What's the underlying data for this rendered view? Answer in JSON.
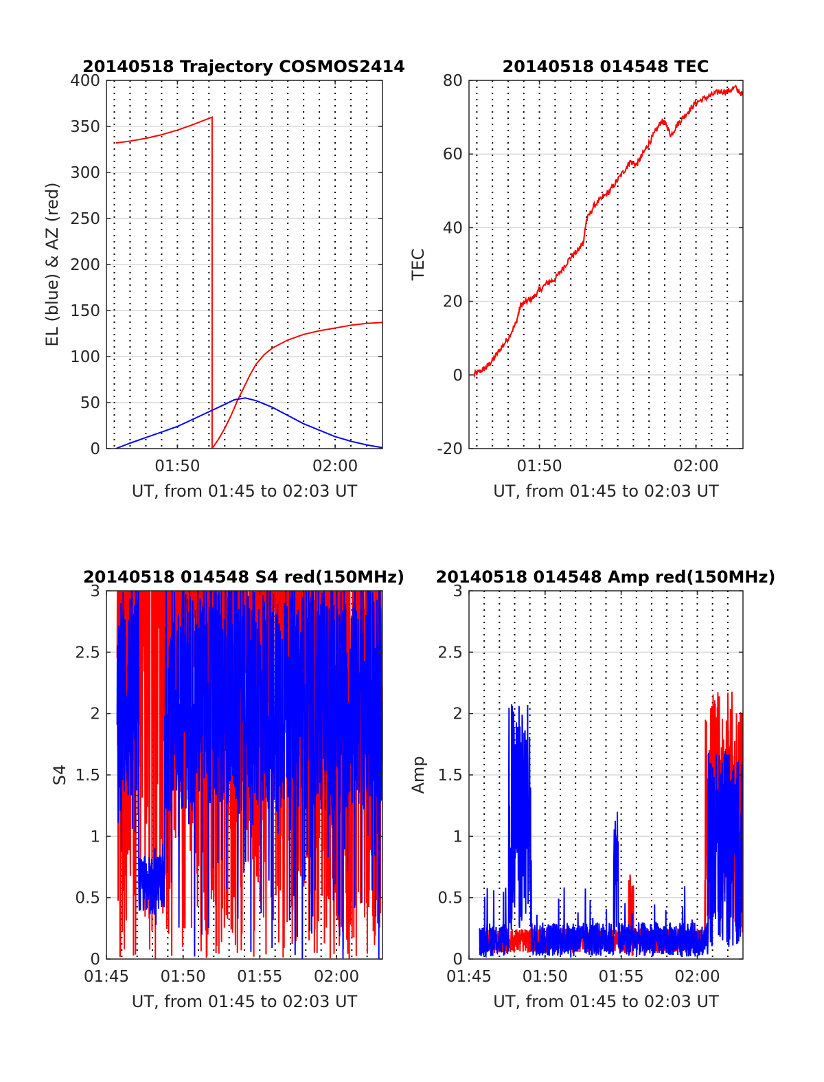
{
  "figure": {
    "background": "#ffffff"
  },
  "colors": {
    "red": "#ff0000",
    "blue": "#0000ff",
    "grid": "#d9d9d9",
    "vgrid": "#000000",
    "axis": "#262626"
  },
  "chart_data": [
    {
      "type": "line",
      "title": "20140518 Trajectory COSMOS2414",
      "xlabel": "UT, from 01:45 to 02:03 UT",
      "ylabel": "EL (blue) & AZ (red)",
      "x_unit": "minutes after 01:45 UT",
      "xlim": [
        0.5,
        18.0
      ],
      "ylim": [
        0,
        400
      ],
      "yticks": [
        0,
        50,
        100,
        150,
        200,
        250,
        300,
        350,
        400
      ],
      "xticks": [
        5,
        15
      ],
      "xticklabels": [
        "01:50",
        "02:00"
      ],
      "grid_y": true,
      "grid_x_dotted_minutes": [
        1,
        2,
        3,
        4,
        5,
        6,
        7,
        8,
        9,
        10,
        11,
        12,
        13,
        14,
        15,
        16,
        17
      ],
      "series": [
        {
          "color": "#ff0000",
          "points": [
            [
              1.1,
              332
            ],
            [
              2,
              334
            ],
            [
              3,
              337
            ],
            [
              4,
              341
            ],
            [
              5,
              346
            ],
            [
              6,
              352
            ],
            [
              7.2,
              360
            ],
            [
              7.2,
              0
            ],
            [
              7.6,
              10
            ],
            [
              8,
              22
            ],
            [
              8.4,
              36
            ],
            [
              8.8,
              52
            ],
            [
              9.2,
              66
            ],
            [
              9.6,
              80
            ],
            [
              10,
              92
            ],
            [
              10.5,
              102
            ],
            [
              11,
              109
            ],
            [
              12,
              118
            ],
            [
              13,
              124
            ],
            [
              14,
              128
            ],
            [
              15,
              131
            ],
            [
              16,
              134
            ],
            [
              17,
              136
            ],
            [
              18,
              137
            ]
          ]
        },
        {
          "color": "#0000ff",
          "points": [
            [
              1.1,
              0
            ],
            [
              2,
              6
            ],
            [
              3,
              12
            ],
            [
              4,
              18
            ],
            [
              5,
              24
            ],
            [
              6,
              32
            ],
            [
              7,
              40
            ],
            [
              8,
              48
            ],
            [
              8.6,
              53
            ],
            [
              9.3,
              55
            ],
            [
              10,
              52
            ],
            [
              11,
              45
            ],
            [
              12,
              36
            ],
            [
              13,
              27
            ],
            [
              14,
              20
            ],
            [
              15,
              13
            ],
            [
              16,
              8
            ],
            [
              17,
              4
            ],
            [
              18,
              1
            ]
          ]
        }
      ]
    },
    {
      "type": "line",
      "title": "20140518 014548 TEC",
      "xlabel": "UT, from 01:45 to 02:03 UT",
      "ylabel": "TEC",
      "x_unit": "minutes after 01:45 UT",
      "xlim": [
        0.5,
        18.0
      ],
      "ylim": [
        -20,
        80
      ],
      "yticks": [
        -20,
        0,
        20,
        40,
        60,
        80
      ],
      "xticks": [
        5,
        15
      ],
      "xticklabels": [
        "01:50",
        "02:00"
      ],
      "grid_y": true,
      "grid_x_dotted_minutes": [
        1,
        2,
        3,
        4,
        5,
        6,
        7,
        8,
        9,
        10,
        11,
        12,
        13,
        14,
        15,
        16,
        17
      ],
      "series": [
        {
          "color": "#ff0000",
          "points": [
            [
              0.8,
              0
            ],
            [
              1.2,
              1
            ],
            [
              1.6,
              2
            ],
            [
              2,
              4
            ],
            [
              2.5,
              7
            ],
            [
              3,
              10
            ],
            [
              3.5,
              14
            ],
            [
              3.8,
              19
            ],
            [
              4.2,
              20
            ],
            [
              4.6,
              21
            ],
            [
              5,
              23
            ],
            [
              5.5,
              25
            ],
            [
              6,
              26
            ],
            [
              6.5,
              29
            ],
            [
              7,
              32
            ],
            [
              7.5,
              34
            ],
            [
              7.8,
              36
            ],
            [
              8,
              42
            ],
            [
              8.5,
              46
            ],
            [
              9,
              48
            ],
            [
              9.5,
              50
            ],
            [
              10,
              53
            ],
            [
              10.5,
              56
            ],
            [
              10.8,
              58
            ],
            [
              11.2,
              57
            ],
            [
              11.6,
              60
            ],
            [
              12,
              63
            ],
            [
              12.4,
              66
            ],
            [
              12.8,
              69
            ],
            [
              13.1,
              68
            ],
            [
              13.4,
              65
            ],
            [
              13.8,
              68
            ],
            [
              14.2,
              70
            ],
            [
              14.6,
              72
            ],
            [
              15,
              74
            ],
            [
              15.5,
              75
            ],
            [
              16,
              76
            ],
            [
              16.5,
              77
            ],
            [
              17,
              77
            ],
            [
              17.5,
              78
            ],
            [
              18,
              76
            ]
          ]
        }
      ]
    },
    {
      "type": "line",
      "title": "20140518 014548 S4 red(150MHz)",
      "xlabel": "UT, from 01:45 to 02:03 UT",
      "ylabel": "S4",
      "x_unit": "minutes after 01:45 UT",
      "xlim": [
        0,
        18.0
      ],
      "ylim": [
        0,
        3
      ],
      "yticks": [
        0,
        0.5,
        1,
        1.5,
        2,
        2.5,
        3
      ],
      "yticklabels": [
        "0",
        "0.5",
        "1",
        "1.5",
        "2",
        "2.5",
        "3"
      ],
      "xticks": [
        0,
        5,
        10,
        15
      ],
      "xticklabels": [
        "01:45",
        "01:50",
        "01:55",
        "02:00"
      ],
      "grid_y": true,
      "grid_x_dotted_minutes": [
        1,
        2,
        3,
        4,
        5,
        6,
        7,
        8,
        9,
        10,
        11,
        12,
        13,
        14,
        15,
        16,
        17
      ],
      "series": [
        {
          "color": "#ff0000",
          "style": "dense noisy signal between 0 and 3, from 01:45:30 to 02:03"
        },
        {
          "color": "#0000ff",
          "style": "dense noisy signal mostly 1.2-3, near 0.5 around 01:48-01:49, from 01:45:30 to 02:03"
        }
      ]
    },
    {
      "type": "line",
      "title": "20140518 014548 Amp red(150MHz)",
      "xlabel": "UT, from 01:45 to 02:03 UT",
      "ylabel": "Amp",
      "x_unit": "minutes after 01:45 UT",
      "xlim": [
        0,
        18.0
      ],
      "ylim": [
        0,
        3
      ],
      "yticks": [
        0,
        0.5,
        1,
        1.5,
        2,
        2.5,
        3
      ],
      "yticklabels": [
        "0",
        "0.5",
        "1",
        "1.5",
        "2",
        "2.5",
        "3"
      ],
      "xticks": [
        0,
        5,
        10,
        15
      ],
      "xticklabels": [
        "01:45",
        "01:50",
        "01:55",
        "02:00"
      ],
      "grid_y": true,
      "grid_x_dotted_minutes": [
        1,
        2,
        3,
        4,
        5,
        6,
        7,
        8,
        9,
        10,
        11,
        12,
        13,
        14,
        15,
        16,
        17
      ],
      "series": [
        {
          "color": "#ff0000",
          "style": "noisy amplitude near 0.1-0.3, burst up to 2.2 from 02:00:30 to 02:03, spike 0.7 near 01:56:30"
        },
        {
          "color": "#0000ff",
          "style": "noisy amplitude near 0.1-0.3, burst up to 2.2 around 01:48-01:49, spike 1.2 near 01:55:30"
        }
      ]
    }
  ]
}
